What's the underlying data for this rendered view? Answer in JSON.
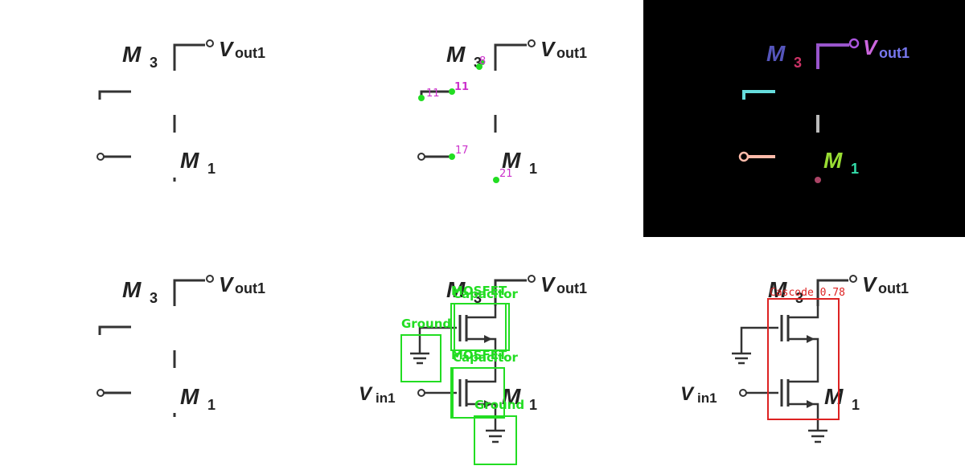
{
  "labels": {
    "m3": "M",
    "m3_sub": "3",
    "m1": "M",
    "m1_sub": "1",
    "vout": "V",
    "vout_sub": "out1",
    "vin": "V",
    "vin_sub": "in1"
  },
  "keypoint_indices": {
    "k8": "8",
    "k11a": "11",
    "k11b": "11",
    "k17": "17",
    "k21": "21"
  },
  "detections": {
    "mosfet": "MOSFET",
    "capacitor": "Capacitor",
    "ground": "Ground",
    "cascode": "Cascode 0.78"
  },
  "colors": {
    "segmentation_background": "#000000",
    "keypoint": "#22dd22",
    "keypoint_label": "#cc33cc",
    "detection_box": "#22dd22",
    "cascode_box": "#dd2222"
  }
}
